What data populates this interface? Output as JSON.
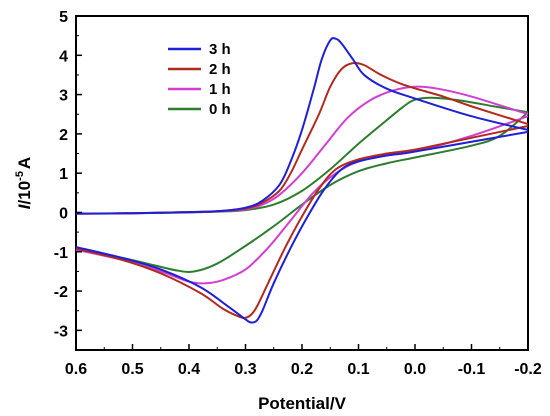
{
  "chart_data": {
    "type": "line",
    "title": "",
    "xlabel": "Potential/V",
    "ylabel_main": "I",
    "ylabel_unit": "/10",
    "ylabel_exp": "-5",
    "ylabel_tail": "A",
    "xlim": [
      0.6,
      -0.2
    ],
    "ylim": [
      -3.5,
      5
    ],
    "x_ticks": [
      0.6,
      0.5,
      0.4,
      0.3,
      0.2,
      0.1,
      0.0,
      -0.1,
      -0.2
    ],
    "x_tick_labels": [
      "0.6",
      "0.5",
      "0.4",
      "0.3",
      "0.2",
      "0.1",
      "0.0",
      "-0.1",
      "-0.2"
    ],
    "y_ticks": [
      -3,
      -2,
      -1,
      0,
      1,
      2,
      3,
      4,
      5
    ],
    "y_tick_labels": [
      "-3",
      "-2",
      "-1",
      "0",
      "1",
      "2",
      "3",
      "4",
      "5"
    ],
    "legend_position": "top-left",
    "grid": false,
    "series": [
      {
        "name": "3 h",
        "color": "#1f1fd6",
        "forward": [
          [
            0.6,
            -0.03
          ],
          [
            0.5,
            -0.02
          ],
          [
            0.4,
            0.01
          ],
          [
            0.35,
            0.03
          ],
          [
            0.3,
            0.12
          ],
          [
            0.27,
            0.3
          ],
          [
            0.24,
            0.7
          ],
          [
            0.22,
            1.3
          ],
          [
            0.2,
            2.1
          ],
          [
            0.18,
            3.1
          ],
          [
            0.165,
            3.9
          ],
          [
            0.15,
            4.38
          ],
          [
            0.14,
            4.42
          ],
          [
            0.13,
            4.3
          ],
          [
            0.11,
            3.9
          ],
          [
            0.09,
            3.5
          ],
          [
            0.05,
            3.15
          ],
          [
            0.0,
            2.9
          ],
          [
            -0.1,
            2.45
          ],
          [
            -0.2,
            2.1
          ]
        ],
        "reverse": [
          [
            -0.2,
            2.05
          ],
          [
            -0.1,
            1.8
          ],
          [
            0.0,
            1.55
          ],
          [
            0.05,
            1.45
          ],
          [
            0.1,
            1.3
          ],
          [
            0.13,
            1.1
          ],
          [
            0.16,
            0.6
          ],
          [
            0.19,
            -0.1
          ],
          [
            0.22,
            -0.9
          ],
          [
            0.25,
            -1.8
          ],
          [
            0.27,
            -2.5
          ],
          [
            0.28,
            -2.75
          ],
          [
            0.29,
            -2.8
          ],
          [
            0.3,
            -2.72
          ],
          [
            0.33,
            -2.4
          ],
          [
            0.38,
            -1.9
          ],
          [
            0.45,
            -1.45
          ],
          [
            0.52,
            -1.15
          ],
          [
            0.6,
            -0.88
          ]
        ]
      },
      {
        "name": "2 h",
        "color": "#b22a1e",
        "forward": [
          [
            0.6,
            -0.03
          ],
          [
            0.5,
            -0.02
          ],
          [
            0.4,
            0.01
          ],
          [
            0.35,
            0.03
          ],
          [
            0.3,
            0.1
          ],
          [
            0.27,
            0.25
          ],
          [
            0.24,
            0.55
          ],
          [
            0.22,
            1.0
          ],
          [
            0.2,
            1.6
          ],
          [
            0.17,
            2.5
          ],
          [
            0.15,
            3.2
          ],
          [
            0.13,
            3.65
          ],
          [
            0.11,
            3.8
          ],
          [
            0.09,
            3.75
          ],
          [
            0.06,
            3.5
          ],
          [
            0.02,
            3.25
          ],
          [
            -0.05,
            2.95
          ],
          [
            -0.1,
            2.7
          ],
          [
            -0.2,
            2.25
          ]
        ],
        "reverse": [
          [
            -0.2,
            2.2
          ],
          [
            -0.1,
            1.9
          ],
          [
            0.0,
            1.6
          ],
          [
            0.05,
            1.5
          ],
          [
            0.1,
            1.35
          ],
          [
            0.14,
            1.1
          ],
          [
            0.17,
            0.6
          ],
          [
            0.2,
            -0.1
          ],
          [
            0.23,
            -0.9
          ],
          [
            0.26,
            -1.8
          ],
          [
            0.28,
            -2.4
          ],
          [
            0.29,
            -2.6
          ],
          [
            0.3,
            -2.68
          ],
          [
            0.31,
            -2.66
          ],
          [
            0.34,
            -2.45
          ],
          [
            0.38,
            -2.05
          ],
          [
            0.45,
            -1.55
          ],
          [
            0.52,
            -1.2
          ],
          [
            0.6,
            -0.92
          ]
        ]
      },
      {
        "name": "1 h",
        "color": "#d23ed2",
        "forward": [
          [
            0.6,
            -0.03
          ],
          [
            0.5,
            -0.02
          ],
          [
            0.4,
            0.01
          ],
          [
            0.35,
            0.03
          ],
          [
            0.3,
            0.08
          ],
          [
            0.27,
            0.2
          ],
          [
            0.24,
            0.45
          ],
          [
            0.2,
            1.0
          ],
          [
            0.16,
            1.7
          ],
          [
            0.12,
            2.4
          ],
          [
            0.08,
            2.85
          ],
          [
            0.04,
            3.1
          ],
          [
            0.0,
            3.2
          ],
          [
            -0.04,
            3.15
          ],
          [
            -0.1,
            2.95
          ],
          [
            -0.2,
            2.5
          ]
        ],
        "reverse": [
          [
            -0.2,
            2.45
          ],
          [
            -0.1,
            1.95
          ],
          [
            0.0,
            1.55
          ],
          [
            0.05,
            1.45
          ],
          [
            0.1,
            1.3
          ],
          [
            0.14,
            1.0
          ],
          [
            0.18,
            0.5
          ],
          [
            0.22,
            -0.2
          ],
          [
            0.26,
            -0.9
          ],
          [
            0.3,
            -1.45
          ],
          [
            0.34,
            -1.72
          ],
          [
            0.37,
            -1.8
          ],
          [
            0.4,
            -1.76
          ],
          [
            0.45,
            -1.5
          ],
          [
            0.52,
            -1.2
          ],
          [
            0.6,
            -0.95
          ]
        ]
      },
      {
        "name": "0 h",
        "color": "#2e7d2e",
        "forward": [
          [
            0.6,
            -0.03
          ],
          [
            0.5,
            -0.02
          ],
          [
            0.4,
            0.0
          ],
          [
            0.35,
            0.02
          ],
          [
            0.3,
            0.06
          ],
          [
            0.25,
            0.2
          ],
          [
            0.2,
            0.55
          ],
          [
            0.15,
            1.1
          ],
          [
            0.1,
            1.75
          ],
          [
            0.05,
            2.35
          ],
          [
            0.02,
            2.7
          ],
          [
            0.0,
            2.87
          ],
          [
            -0.03,
            2.92
          ],
          [
            -0.08,
            2.85
          ],
          [
            -0.14,
            2.7
          ],
          [
            -0.2,
            2.55
          ]
        ],
        "reverse": [
          [
            -0.2,
            2.55
          ],
          [
            -0.15,
            1.95
          ],
          [
            -0.1,
            1.7
          ],
          [
            0.0,
            1.4
          ],
          [
            0.05,
            1.25
          ],
          [
            0.1,
            1.05
          ],
          [
            0.15,
            0.7
          ],
          [
            0.2,
            0.2
          ],
          [
            0.25,
            -0.35
          ],
          [
            0.3,
            -0.85
          ],
          [
            0.35,
            -1.3
          ],
          [
            0.39,
            -1.5
          ],
          [
            0.42,
            -1.48
          ],
          [
            0.46,
            -1.35
          ],
          [
            0.52,
            -1.15
          ],
          [
            0.6,
            -0.95
          ]
        ]
      }
    ]
  }
}
